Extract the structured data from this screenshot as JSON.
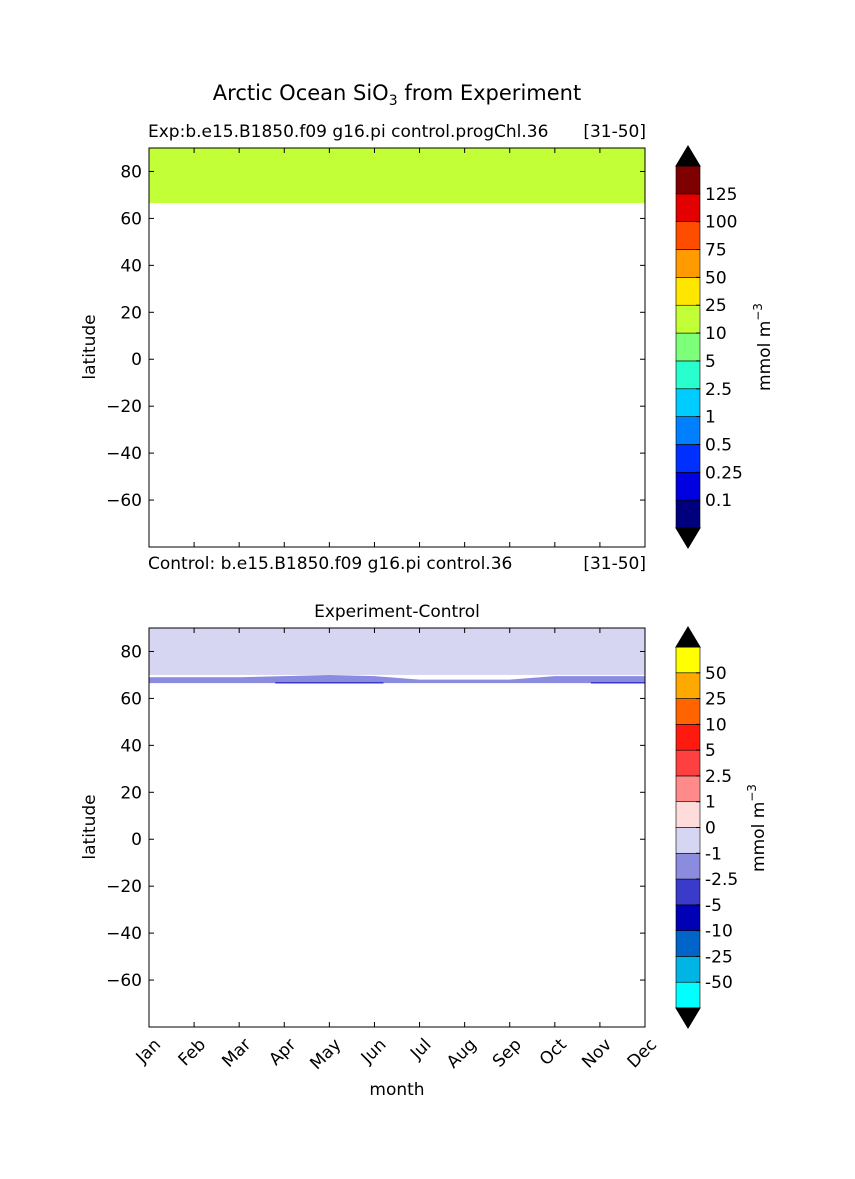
{
  "figure": {
    "title_main": "Arctic Ocean SiO",
    "title_sub": "3",
    "title_rest": " from Experiment"
  },
  "chart_data": [
    {
      "type": "heatmap",
      "title_left": "Exp:b.e15.B1850.f09 g16.pi control.progChl.36",
      "title_right": "[31-50]",
      "bottom_left": "Control: b.e15.B1850.f09 g16.pi control.36",
      "bottom_right": "[31-50]",
      "ylabel": "latitude",
      "xlabel": "",
      "x_categories": [
        "Jan",
        "Feb",
        "Mar",
        "Apr",
        "May",
        "Jun",
        "Jul",
        "Aug",
        "Sep",
        "Oct",
        "Nov",
        "Dec"
      ],
      "ylim": [
        -80,
        90
      ],
      "yticks": [
        80,
        60,
        40,
        20,
        0,
        -20,
        -40,
        -60
      ],
      "ytick_labels": [
        "80",
        "60",
        "40",
        "20",
        "0",
        "−20",
        "−40",
        "−60"
      ],
      "fill_bands": [
        {
          "lat_lower": 66.5,
          "lat_upper": 90,
          "level": "10 to 25",
          "color": "#c2ff36"
        }
      ],
      "colorbar": {
        "label": "mmol m",
        "label_exp": "−3",
        "levels": [
          "0.1",
          "0.25",
          "0.5",
          "1",
          "2.5",
          "5",
          "10",
          "25",
          "50",
          "75",
          "100",
          "125"
        ],
        "colors": [
          "#00007f",
          "#0000e0",
          "#0030ff",
          "#0080ff",
          "#00ccff",
          "#29ffce",
          "#7dff7a",
          "#c2ff36",
          "#ffe600",
          "#ff9a00",
          "#ff4d00",
          "#e30000",
          "#7f0000"
        ],
        "extend_low": "#000000",
        "extend_high": "#000000"
      }
    },
    {
      "type": "heatmap",
      "title": "Experiment-Control",
      "ylabel": "latitude",
      "xlabel": "month",
      "x_categories": [
        "Jan",
        "Feb",
        "Mar",
        "Apr",
        "May",
        "Jun",
        "Jul",
        "Aug",
        "Sep",
        "Oct",
        "Nov",
        "Dec"
      ],
      "ylim": [
        -80,
        90
      ],
      "yticks": [
        80,
        60,
        40,
        20,
        0,
        -20,
        -40,
        -60
      ],
      "ytick_labels": [
        "80",
        "60",
        "40",
        "20",
        "0",
        "−20",
        "−40",
        "−60"
      ],
      "fill_bands": [
        {
          "lat_lower": 70,
          "lat_upper": 90,
          "level": "-1 to 0",
          "color": "#d6d6f2"
        }
      ],
      "boundary_band": {
        "level": "-2.5 to -1",
        "color": "#8b8be0",
        "lower_lat": 66.5,
        "upper_lat_by_month": [
          69.0,
          69.0,
          69.0,
          69.5,
          70.0,
          69.5,
          68.0,
          68.0,
          68.0,
          69.5,
          69.5,
          69.5
        ]
      },
      "strong_segments": [
        {
          "level": "-5 to -2.5",
          "color": "#3a3acb",
          "months": [
            "Apr",
            "May",
            "Jun"
          ],
          "lat_lower": 66.5,
          "lat_upper": 67.0
        },
        {
          "level": "-5 to -2.5",
          "color": "#3a3acb",
          "months": [
            "Nov",
            "Dec"
          ],
          "lat_lower": 66.5,
          "lat_upper": 67.0
        }
      ],
      "colorbar": {
        "label": "mmol m",
        "label_exp": "−3",
        "levels": [
          "-50",
          "-25",
          "-10",
          "-5",
          "-2.5",
          "-1",
          "0",
          "1",
          "2.5",
          "5",
          "10",
          "25",
          "50"
        ],
        "colors": [
          "#00ffff",
          "#00b4e4",
          "#0064c8",
          "#0000b4",
          "#3a3acb",
          "#8b8be0",
          "#d6d6f2",
          "#ffdcdc",
          "#ff8a8a",
          "#ff4040",
          "#ff1a10",
          "#ff6400",
          "#ffa800",
          "#ffff00"
        ],
        "extend_low": "#000000",
        "extend_high": "#000000"
      }
    }
  ]
}
